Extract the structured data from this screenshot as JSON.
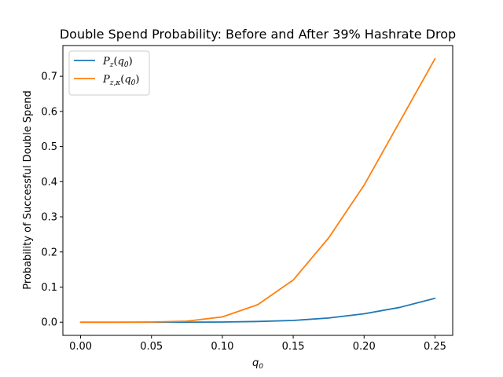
{
  "chart_data": {
    "type": "line",
    "title": "Double Spend Probability: Before and After 39% Hashrate Drop",
    "xlabel": "q",
    "xlabel_sub": "0",
    "ylabel": "Probability of Successful Double Spend",
    "xlim": [
      -0.0125,
      0.2625
    ],
    "ylim": [
      -0.0375,
      0.7875
    ],
    "xticks": [
      0.0,
      0.05,
      0.1,
      0.15,
      0.2,
      0.25
    ],
    "xtick_labels": [
      "0.00",
      "0.05",
      "0.10",
      "0.15",
      "0.20",
      "0.25"
    ],
    "yticks": [
      0.0,
      0.1,
      0.2,
      0.3,
      0.4,
      0.5,
      0.6,
      0.7
    ],
    "ytick_labels": [
      "0.0",
      "0.1",
      "0.2",
      "0.3",
      "0.4",
      "0.5",
      "0.6",
      "0.7"
    ],
    "grid": false,
    "legend_position": "top-left",
    "x": [
      0.0,
      0.025,
      0.05,
      0.075,
      0.1,
      0.125,
      0.15,
      0.175,
      0.2,
      0.225,
      0.25
    ],
    "series": [
      {
        "name": "P",
        "name_sub": "z",
        "name_arg": "q",
        "name_arg_sub": "0",
        "color": "#1f77b4",
        "values": [
          0.0,
          0.0,
          0.0,
          0.0,
          0.0005,
          0.002,
          0.005,
          0.012,
          0.024,
          0.042,
          0.068
        ]
      },
      {
        "name": "P",
        "name_sub": "z,κ",
        "name_arg": "q",
        "name_arg_sub": "0",
        "color": "#ff7f0e",
        "values": [
          0.0,
          0.0,
          0.0005,
          0.003,
          0.015,
          0.05,
          0.12,
          0.24,
          0.39,
          0.57,
          0.75
        ]
      }
    ]
  }
}
